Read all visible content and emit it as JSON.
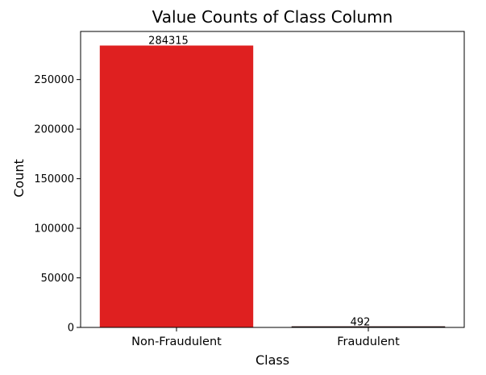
{
  "chart_data": {
    "type": "bar",
    "title": "Value Counts of Class Column",
    "xlabel": "Class",
    "ylabel": "Count",
    "categories": [
      "Non-Fraudulent",
      "Fraudulent"
    ],
    "values": [
      284315,
      492
    ],
    "data_labels": [
      "284315",
      "492"
    ],
    "yticks": [
      0,
      50000,
      100000,
      150000,
      200000,
      250000
    ],
    "ylim": [
      0,
      298530
    ],
    "bar_colors": [
      "#df2020",
      "#df2020"
    ],
    "grid": false,
    "legend": "none"
  }
}
